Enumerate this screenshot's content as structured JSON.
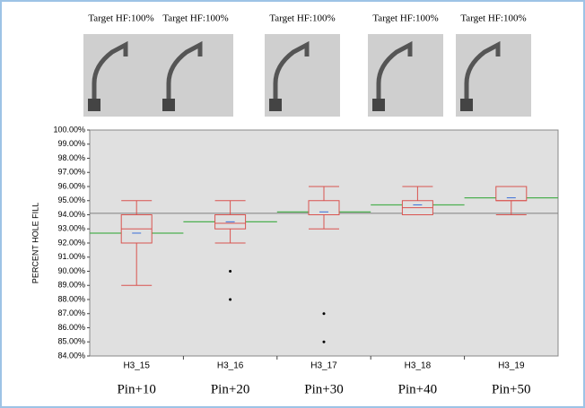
{
  "images": [
    {
      "caption": "Target HF:100%"
    },
    {
      "caption": "Target HF:100%"
    },
    {
      "caption": "Target HF:100%"
    },
    {
      "caption": "Target HF:100%"
    },
    {
      "caption": "Target HF:100%"
    }
  ],
  "chart_data": {
    "type": "box",
    "y_label": "PERCENT HOLE FILL",
    "categories": [
      "H3_15",
      "H3_16",
      "H3_17",
      "H3_18",
      "H3_19"
    ],
    "sublabels": [
      "Pin+10",
      "Pin+20",
      "Pin+30",
      "Pin+40",
      "Pin+50"
    ],
    "boxes": [
      {
        "low": 89,
        "q1": 92,
        "median": 93,
        "q3": 94,
        "high": 95,
        "mean": 92.7,
        "outliers": []
      },
      {
        "low": 92,
        "q1": 93,
        "median": 93.4,
        "q3": 94,
        "high": 95,
        "mean": 93.5,
        "outliers": [
          90,
          88
        ]
      },
      {
        "low": 93,
        "q1": 94,
        "median": 94,
        "q3": 95,
        "high": 96,
        "mean": 94.2,
        "outliers": [
          87,
          85
        ]
      },
      {
        "low": 94,
        "q1": 94,
        "median": 94.5,
        "q3": 95,
        "high": 96,
        "mean": 94.7,
        "outliers": []
      },
      {
        "low": 94,
        "q1": 95,
        "median": 95,
        "q3": 96,
        "high": 96,
        "mean": 95.2,
        "outliers": []
      }
    ],
    "reference_line": 94.1,
    "box_color": "#d9534f",
    "mean_color": "#4caf50",
    "reference_color": "#808080",
    "ylim": [
      84,
      100
    ],
    "yticks": [
      {
        "value": 84,
        "label": "84.00%"
      },
      {
        "value": 85,
        "label": "85.00%"
      },
      {
        "value": 86,
        "label": "86.00%"
      },
      {
        "value": 87,
        "label": "87.00%"
      },
      {
        "value": 88,
        "label": "88.00%"
      },
      {
        "value": 89,
        "label": "89.00%"
      },
      {
        "value": 90,
        "label": "90.00%"
      },
      {
        "value": 91,
        "label": "91.00%"
      },
      {
        "value": 92,
        "label": "92.00%"
      },
      {
        "value": 93,
        "label": "93.00%"
      },
      {
        "value": 94,
        "label": "94.00%"
      },
      {
        "value": 95,
        "label": "95.00%"
      },
      {
        "value": 96,
        "label": "96.00%"
      },
      {
        "value": 97,
        "label": "97.00%"
      },
      {
        "value": 98,
        "label": "98.00%"
      },
      {
        "value": 99,
        "label": "99.00%"
      },
      {
        "value": 100,
        "label": "100.00%"
      }
    ]
  }
}
